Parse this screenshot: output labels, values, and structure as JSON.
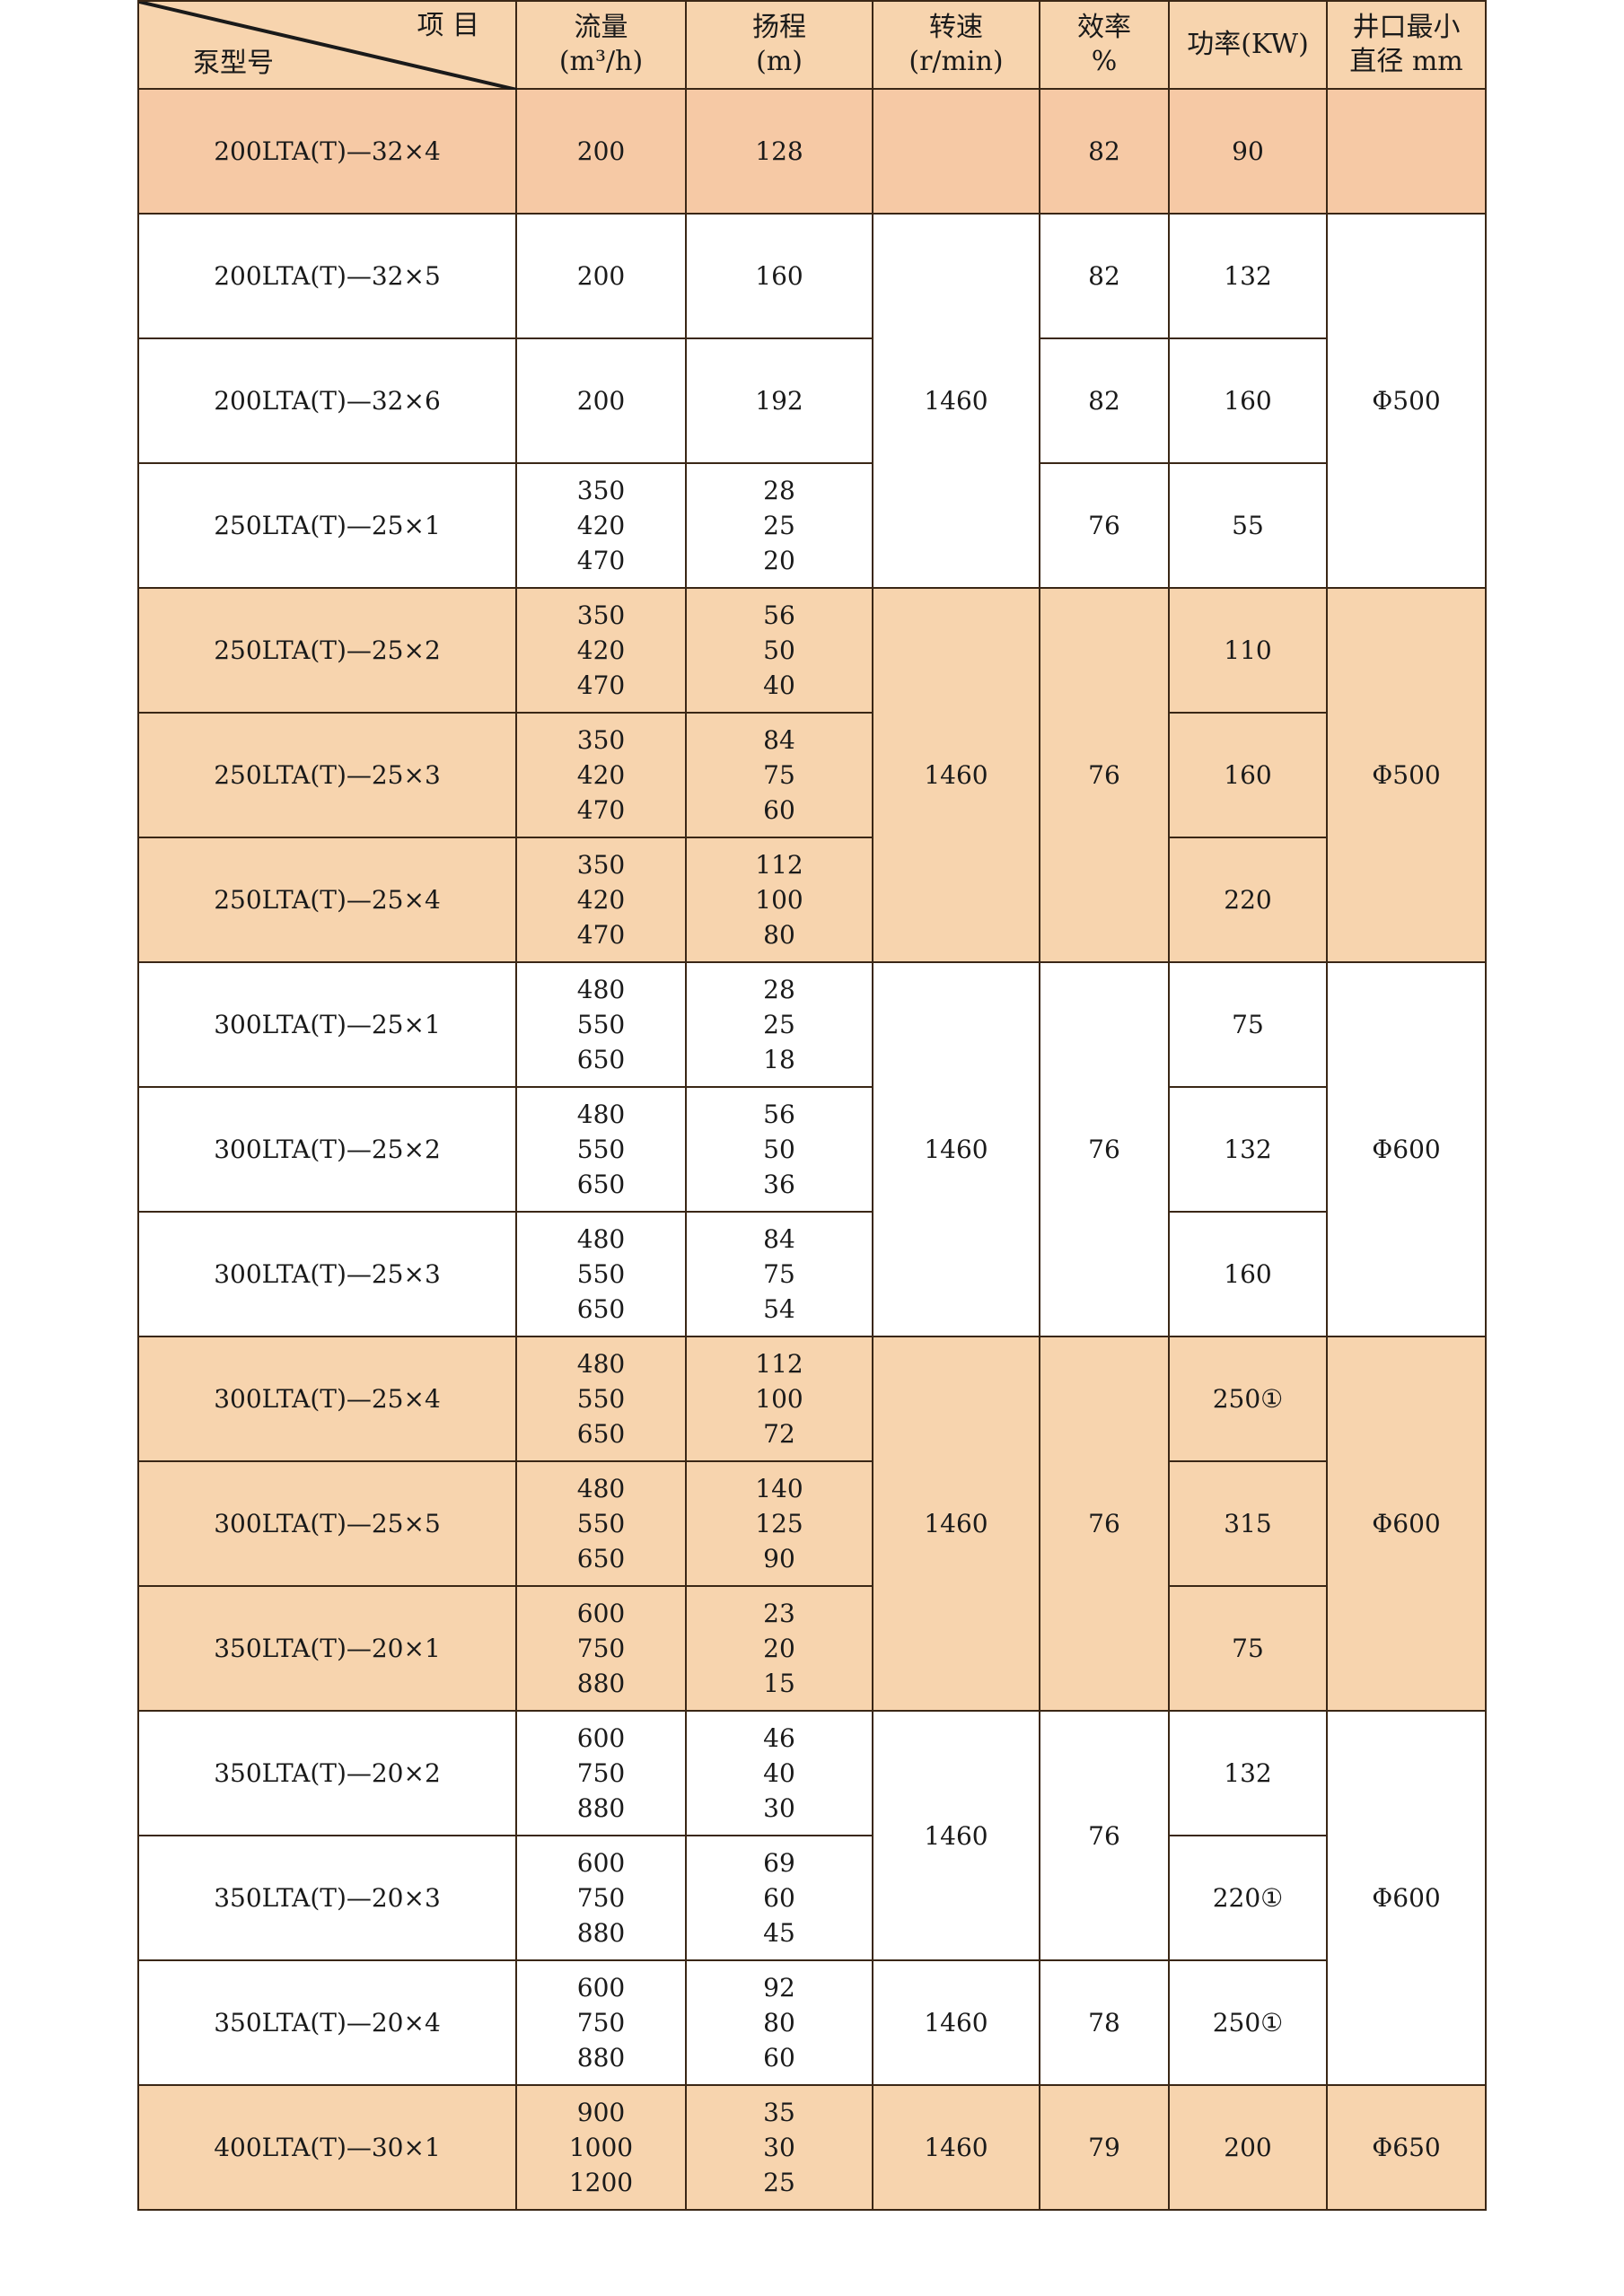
{
  "header": {
    "item_label": "项 目",
    "model_label": "泵型号",
    "flow": [
      "流量",
      "(m³/h)"
    ],
    "head": [
      "扬程",
      "(m)"
    ],
    "speed": [
      "转速",
      "(r/min)"
    ],
    "efficiency": [
      "效率",
      "%"
    ],
    "power": [
      "功率(KW)"
    ],
    "well": [
      "井口最小",
      "直径 mm"
    ]
  },
  "colors": {
    "shaded": "#f7d4ae",
    "first_row": "#f6c9a5",
    "border": "#3a2716"
  },
  "rows": [
    {
      "model": "200LTA(T)—32×4",
      "flow": [
        "200"
      ],
      "head": [
        "128"
      ],
      "power": "90",
      "shaded": true
    },
    {
      "model": "200LTA(T)—32×5",
      "flow": [
        "200"
      ],
      "head": [
        "160"
      ],
      "power": "132",
      "shaded": false
    },
    {
      "model": "200LTA(T)—32×6",
      "flow": [
        "200"
      ],
      "head": [
        "192"
      ],
      "power": "160",
      "shaded": false
    },
    {
      "model": "250LTA(T)—25×1",
      "flow": [
        "350",
        "420",
        "470"
      ],
      "head": [
        "28",
        "25",
        "20"
      ],
      "power": "55",
      "shaded": false
    },
    {
      "model": "250LTA(T)—25×2",
      "flow": [
        "350",
        "420",
        "470"
      ],
      "head": [
        "56",
        "50",
        "40"
      ],
      "power": "110",
      "shaded": true
    },
    {
      "model": "250LTA(T)—25×3",
      "flow": [
        "350",
        "420",
        "470"
      ],
      "head": [
        "84",
        "75",
        "60"
      ],
      "power": "160",
      "shaded": true
    },
    {
      "model": "250LTA(T)—25×4",
      "flow": [
        "350",
        "420",
        "470"
      ],
      "head": [
        "112",
        "100",
        "80"
      ],
      "power": "220",
      "shaded": true
    },
    {
      "model": "300LTA(T)—25×1",
      "flow": [
        "480",
        "550",
        "650"
      ],
      "head": [
        "28",
        "25",
        "18"
      ],
      "power": "75",
      "shaded": false
    },
    {
      "model": "300LTA(T)—25×2",
      "flow": [
        "480",
        "550",
        "650"
      ],
      "head": [
        "56",
        "50",
        "36"
      ],
      "power": "132",
      "shaded": false
    },
    {
      "model": "300LTA(T)—25×3",
      "flow": [
        "480",
        "550",
        "650"
      ],
      "head": [
        "84",
        "75",
        "54"
      ],
      "power": "160",
      "shaded": false
    },
    {
      "model": "300LTA(T)—25×4",
      "flow": [
        "480",
        "550",
        "650"
      ],
      "head": [
        "112",
        "100",
        "72"
      ],
      "power": "250①",
      "shaded": true
    },
    {
      "model": "300LTA(T)—25×5",
      "flow": [
        "480",
        "550",
        "650"
      ],
      "head": [
        "140",
        "125",
        "90"
      ],
      "power": "315",
      "shaded": true
    },
    {
      "model": "350LTA(T)—20×1",
      "flow": [
        "600",
        "750",
        "880"
      ],
      "head": [
        "23",
        "20",
        "15"
      ],
      "power": "75",
      "shaded": true
    },
    {
      "model": "350LTA(T)—20×2",
      "flow": [
        "600",
        "750",
        "880"
      ],
      "head": [
        "46",
        "40",
        "30"
      ],
      "power": "132",
      "shaded": false
    },
    {
      "model": "350LTA(T)—20×3",
      "flow": [
        "600",
        "750",
        "880"
      ],
      "head": [
        "69",
        "60",
        "45"
      ],
      "power": "220①",
      "shaded": false
    },
    {
      "model": "350LTA(T)—20×4",
      "flow": [
        "600",
        "750",
        "880"
      ],
      "head": [
        "92",
        "80",
        "60"
      ],
      "power": "250①",
      "shaded": false
    },
    {
      "model": "400LTA(T)—30×1",
      "flow": [
        "900",
        "1000",
        "1200"
      ],
      "head": [
        "35",
        "30",
        "25"
      ],
      "power": "200",
      "shaded": true
    }
  ],
  "speed_groups": [
    "",
    "1460",
    "1460",
    "1460",
    "1460",
    "1460",
    "1460",
    "1460"
  ],
  "efficiency_groups": [
    "82",
    "82",
    "82",
    "76",
    "76",
    "76",
    "76",
    "76",
    "78",
    "79"
  ],
  "well_groups": [
    "",
    "Φ500",
    "Φ500",
    "Φ600",
    "Φ600",
    "Φ600",
    "Φ650"
  ]
}
